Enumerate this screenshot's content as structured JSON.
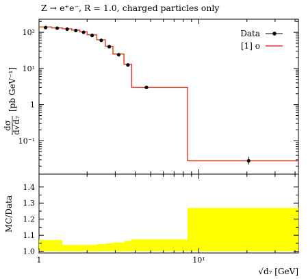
{
  "title": "Z → e⁺e⁻, R = 1.0, charged particles only",
  "chart_data": [
    {
      "type": "line",
      "panel": "main",
      "title": "Z → e⁺e⁻, R = 1.0, charged particles only",
      "ylabel_fraction_num": "dσ",
      "ylabel_fraction_den": "d√d₇",
      "ylabel_units": "[pb GeV⁻¹]",
      "xscale": "log",
      "yscale": "log",
      "xlim": [
        1.0,
        42.0
      ],
      "ylim": [
        0.012,
        230
      ],
      "y_ticks": [
        {
          "value": 0.1,
          "label": "10⁻¹"
        },
        {
          "value": 1,
          "label": "1"
        },
        {
          "value": 10,
          "label": "10¹"
        },
        {
          "value": 100,
          "label": "10²"
        }
      ],
      "legend": {
        "placement": "top-right",
        "entries": [
          {
            "label": "Data",
            "marker": "point-with-errorbar",
            "color": "#000000"
          },
          {
            "label": "[1] o",
            "marker": "line",
            "color": "#e8371e"
          }
        ]
      },
      "series": [
        {
          "name": "Data",
          "color": "#000000",
          "points": [
            {
              "x": 1.1,
              "y": 135
            },
            {
              "x": 1.3,
              "y": 130
            },
            {
              "x": 1.5,
              "y": 122
            },
            {
              "x": 1.7,
              "y": 112
            },
            {
              "x": 1.9,
              "y": 100
            },
            {
              "x": 2.15,
              "y": 82
            },
            {
              "x": 2.45,
              "y": 60
            },
            {
              "x": 2.75,
              "y": 40
            },
            {
              "x": 3.15,
              "y": 24
            },
            {
              "x": 3.6,
              "y": 12.5
            },
            {
              "x": 4.7,
              "y": 3.0
            },
            {
              "x": 20.5,
              "y": 0.028,
              "yerr_low": 0.006,
              "yerr_high": 0.008
            }
          ]
        },
        {
          "name": "[1] o",
          "color": "#e8371e",
          "bins": [
            {
              "x0": 1.0,
              "x1": 1.2,
              "y": 140
            },
            {
              "x0": 1.2,
              "x1": 1.4,
              "y": 132
            },
            {
              "x0": 1.4,
              "x1": 1.6,
              "y": 125
            },
            {
              "x0": 1.6,
              "x1": 1.8,
              "y": 115
            },
            {
              "x0": 1.8,
              "x1": 2.0,
              "y": 103
            },
            {
              "x0": 2.0,
              "x1": 2.3,
              "y": 85
            },
            {
              "x0": 2.3,
              "x1": 2.6,
              "y": 62
            },
            {
              "x0": 2.6,
              "x1": 2.9,
              "y": 41
            },
            {
              "x0": 2.9,
              "x1": 3.4,
              "y": 25
            },
            {
              "x0": 3.4,
              "x1": 3.8,
              "y": 13
            },
            {
              "x0": 3.8,
              "x1": 8.5,
              "y": 3.0
            },
            {
              "x0": 8.5,
              "x1": 42.0,
              "y": 0.028
            }
          ]
        }
      ]
    },
    {
      "type": "area",
      "panel": "ratio",
      "ylabel": "MC/Data",
      "xlabel": "√d₇ [GeV]",
      "xscale": "log",
      "xlim": [
        1.0,
        42.0
      ],
      "ylim": [
        0.99,
        1.48
      ],
      "y_ticks": [
        {
          "value": 1.0,
          "label": "1.0"
        },
        {
          "value": 1.1,
          "label": "1.1"
        },
        {
          "value": 1.2,
          "label": "1.2"
        },
        {
          "value": 1.3,
          "label": "1.3"
        },
        {
          "value": 1.4,
          "label": "1.4"
        }
      ],
      "x_ticks": [
        {
          "value": 1,
          "label": "1"
        },
        {
          "value": 10,
          "label": "10¹"
        }
      ],
      "band_color": "#ffff00",
      "band": [
        {
          "x0": 1.0,
          "x1": 1.3,
          "low": 1.0,
          "high": 1.07
        },
        {
          "x0": 1.3,
          "x1": 1.4,
          "low": 1.0,
          "high": 1.07
        },
        {
          "x0": 1.4,
          "x1": 1.6,
          "low": 1.0,
          "high": 1.04
        },
        {
          "x0": 1.6,
          "x1": 2.0,
          "low": 1.0,
          "high": 1.04
        },
        {
          "x0": 2.0,
          "x1": 2.3,
          "low": 1.0,
          "high": 1.04
        },
        {
          "x0": 2.3,
          "x1": 2.6,
          "low": 1.0,
          "high": 1.045
        },
        {
          "x0": 2.6,
          "x1": 2.9,
          "low": 1.0,
          "high": 1.05
        },
        {
          "x0": 2.9,
          "x1": 3.4,
          "low": 1.0,
          "high": 1.055
        },
        {
          "x0": 3.4,
          "x1": 3.8,
          "low": 1.0,
          "high": 1.065
        },
        {
          "x0": 3.8,
          "x1": 8.5,
          "low": 1.0,
          "high": 1.075
        },
        {
          "x0": 8.5,
          "x1": 42.0,
          "low": 1.0,
          "high": 1.27
        }
      ]
    }
  ]
}
